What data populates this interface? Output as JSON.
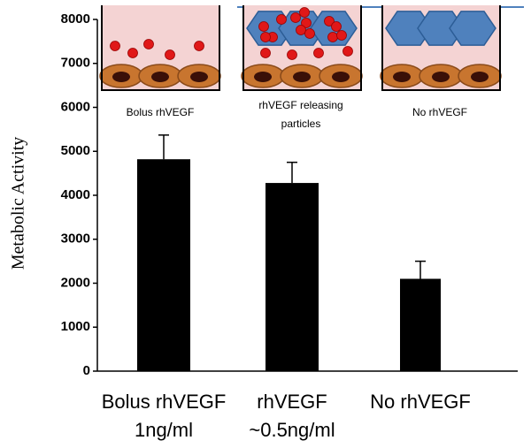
{
  "chart_data": {
    "type": "bar",
    "y_label": "Metabolic Activity",
    "categories": [
      [
        "Bolus rhVEGF",
        "1ng/ml"
      ],
      [
        "rhVEGF",
        "~0.5ng/ml"
      ],
      [
        "No rhVEGF"
      ]
    ],
    "values": [
      4820,
      4280,
      2100
    ],
    "errors": [
      550,
      470,
      400
    ],
    "color": "#000000",
    "ylim": [
      0,
      8000
    ],
    "yticks": [
      0,
      1000,
      2000,
      3000,
      4000,
      5000,
      6000,
      7000,
      8000
    ],
    "annotations": [
      [
        "Bolus rhVEGF"
      ],
      [
        "rhVEGF releasing",
        "particles"
      ],
      [
        "No rhVEGF"
      ]
    ]
  }
}
